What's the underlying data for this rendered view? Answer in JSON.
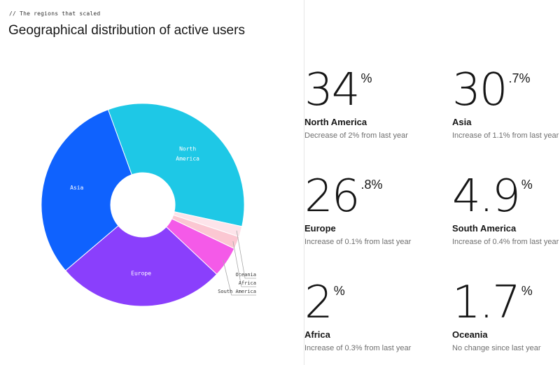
{
  "header": {
    "eyebrow": "// The regions that scaled",
    "title": "Geographical distribution of active users"
  },
  "chart_data": {
    "type": "pie",
    "variant": "donut",
    "title": "Geographical distribution of active users",
    "slices": [
      {
        "label": "North America",
        "value": 34.0,
        "color": "#1ec8e6",
        "label_style": "inside"
      },
      {
        "label": "Oceania",
        "value": 1.7,
        "color": "#fde4ea",
        "label_style": "callout"
      },
      {
        "label": "Africa",
        "value": 2.0,
        "color": "#fbc7d2",
        "label_style": "callout"
      },
      {
        "label": "South America",
        "value": 4.9,
        "color": "#f45ae8",
        "label_style": "callout"
      },
      {
        "label": "Europe",
        "value": 26.8,
        "color": "#8a3ffc",
        "label_style": "inside"
      },
      {
        "label": "Asia",
        "value": 30.7,
        "color": "#0f62fe",
        "label_style": "inside"
      }
    ]
  },
  "stats": [
    {
      "big": "34",
      "sup": "%",
      "region": "North America",
      "note": "Decrease of 2% from last year"
    },
    {
      "big": "30",
      "sup": ".7%",
      "region": "Asia",
      "note": "Increase of 1.1% from last year"
    },
    {
      "big": "26",
      "sup": ".8%",
      "region": "Europe",
      "note": "Increase of 0.1% from last year"
    },
    {
      "big": "4.9",
      "sup": "%",
      "region": "South America",
      "note": "Increase of 0.4% from last year"
    },
    {
      "big": "2",
      "sup": "%",
      "region": "Africa",
      "note": "Increase of 0.3% from last year"
    },
    {
      "big": "1.7",
      "sup": "%",
      "region": "Oceania",
      "note": "No change since last year"
    }
  ]
}
